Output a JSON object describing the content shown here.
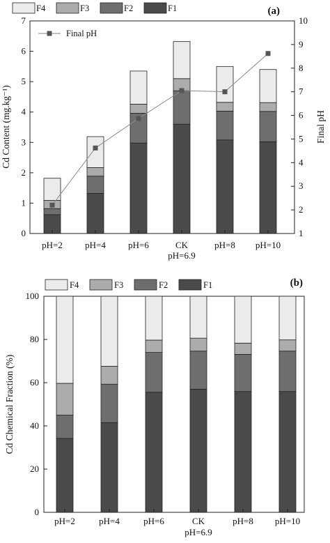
{
  "colors": {
    "F1": "#4a4a4a",
    "F2": "#6e6e6e",
    "F3": "#acacac",
    "F4": "#ebebeb",
    "line": "#8a8a8a",
    "marker": "#555555"
  },
  "chart_data": [
    {
      "type": "bar",
      "stacked": true,
      "panel_label": "(a)",
      "categories": [
        [
          "pH=2"
        ],
        [
          "pH=4"
        ],
        [
          "pH=6"
        ],
        [
          "CK",
          "pH=6.9"
        ],
        [
          "pH=8"
        ],
        [
          "pH=10"
        ]
      ],
      "ylabel": "Cd Content (mg.kg⁻¹)",
      "ylim": [
        0,
        7
      ],
      "yticks": [
        0,
        1,
        2,
        3,
        4,
        5,
        6,
        7
      ],
      "series": [
        {
          "name": "F1",
          "values": [
            0.62,
            1.32,
            2.98,
            3.6,
            3.08,
            3.02
          ]
        },
        {
          "name": "F2",
          "values": [
            0.2,
            0.57,
            0.98,
            1.1,
            0.95,
            1.0
          ]
        },
        {
          "name": "F3",
          "values": [
            0.27,
            0.28,
            0.3,
            0.4,
            0.29,
            0.29
          ]
        },
        {
          "name": "F4",
          "values": [
            0.73,
            1.02,
            1.09,
            1.22,
            1.18,
            1.09
          ]
        }
      ],
      "secondary": {
        "type": "line",
        "name": "Final pH",
        "values": [
          2.2,
          4.62,
          5.87,
          7.05,
          7.0,
          8.62
        ],
        "ylabel": "Final pH",
        "ylim": [
          1,
          10
        ],
        "yticks": [
          1,
          2,
          3,
          4,
          5,
          6,
          7,
          8,
          9,
          10
        ]
      },
      "legend_order": [
        "F4",
        "F3",
        "F2",
        "F1"
      ]
    },
    {
      "type": "bar",
      "stacked": true,
      "panel_label": "(b)",
      "categories": [
        [
          "pH=2"
        ],
        [
          "pH=4"
        ],
        [
          "pH=6"
        ],
        [
          "CK",
          "pH=6.9"
        ],
        [
          "pH=8"
        ],
        [
          "pH=10"
        ]
      ],
      "ylabel": "Cd Chemical Fraction (%)",
      "ylim": [
        0,
        100
      ],
      "yticks": [
        0,
        20,
        40,
        60,
        80,
        100
      ],
      "series": [
        {
          "name": "F1",
          "values": [
            34.2,
            41.5,
            55.6,
            57.0,
            55.9,
            55.9
          ]
        },
        {
          "name": "F2",
          "values": [
            10.8,
            17.8,
            18.4,
            17.6,
            17.2,
            18.7
          ]
        },
        {
          "name": "F3",
          "values": [
            14.7,
            8.3,
            5.7,
            6.0,
            5.2,
            5.2
          ]
        },
        {
          "name": "F4",
          "values": [
            40.3,
            32.4,
            20.3,
            19.4,
            21.7,
            20.2
          ]
        }
      ],
      "legend_order": [
        "F4",
        "F3",
        "F2",
        "F1"
      ]
    }
  ]
}
